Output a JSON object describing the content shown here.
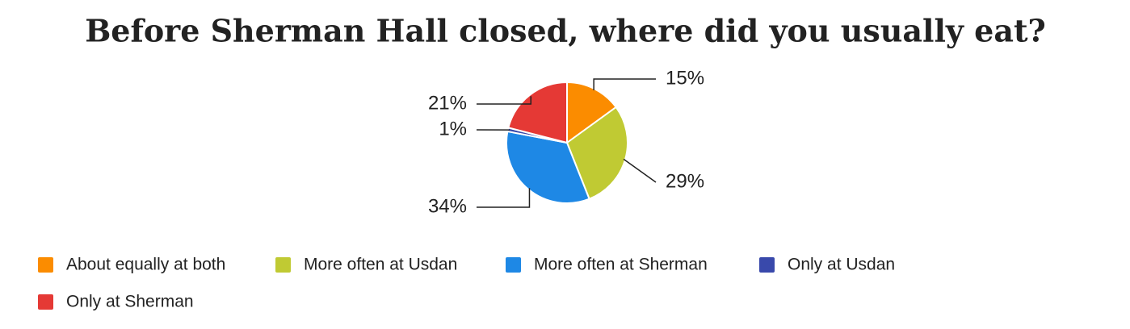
{
  "chart_data": {
    "type": "pie",
    "title": "Before Sherman Hall closed, where did you usually eat?",
    "categories": [
      "About equally at both",
      "More often at Usdan",
      "More often at Sherman",
      "Only at Usdan",
      "Only at Sherman"
    ],
    "values": [
      15,
      29,
      34,
      1,
      21
    ],
    "value_labels": [
      "15%",
      "29%",
      "34%",
      "1%",
      "21%"
    ],
    "colors": [
      "#fb8c00",
      "#c0ca33",
      "#1e88e5",
      "#3949ab",
      "#e53935"
    ]
  }
}
